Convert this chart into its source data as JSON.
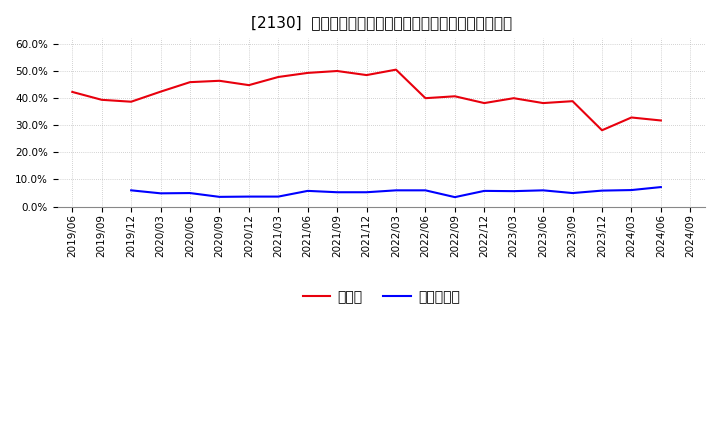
{
  "title": "[2130]  現預金、有利子負債の総資産に対する比率の推移",
  "ylim": [
    0.0,
    0.62
  ],
  "yticks": [
    0.0,
    0.1,
    0.2,
    0.3,
    0.4,
    0.5,
    0.6
  ],
  "x_labels": [
    "2019/06",
    "2019/09",
    "2019/12",
    "2020/03",
    "2020/06",
    "2020/09",
    "2020/12",
    "2021/03",
    "2021/06",
    "2021/09",
    "2021/12",
    "2022/03",
    "2022/06",
    "2022/09",
    "2022/12",
    "2023/03",
    "2023/06",
    "2023/09",
    "2023/12",
    "2024/03",
    "2024/06",
    "2024/09"
  ],
  "cash_values": [
    0.422,
    0.393,
    0.386,
    0.423,
    0.458,
    0.463,
    0.447,
    0.477,
    0.492,
    0.499,
    0.484,
    0.504,
    0.399,
    0.406,
    0.381,
    0.399,
    0.381,
    0.388,
    0.281,
    0.328,
    0.317,
    null
  ],
  "debt_values": [
    null,
    null,
    0.06,
    0.049,
    0.05,
    0.036,
    0.037,
    0.037,
    0.058,
    0.053,
    0.053,
    0.06,
    0.06,
    0.035,
    0.058,
    0.057,
    0.06,
    0.05,
    0.059,
    0.061,
    0.072,
    null
  ],
  "cash_color": "#e8000d",
  "debt_color": "#0000ff",
  "grid_color": "#aaaaaa",
  "background_color": "#ffffff",
  "legend_cash": "現預金",
  "legend_debt": "有利子負債",
  "title_fontsize": 11,
  "tick_fontsize": 7.5,
  "legend_fontsize": 10
}
